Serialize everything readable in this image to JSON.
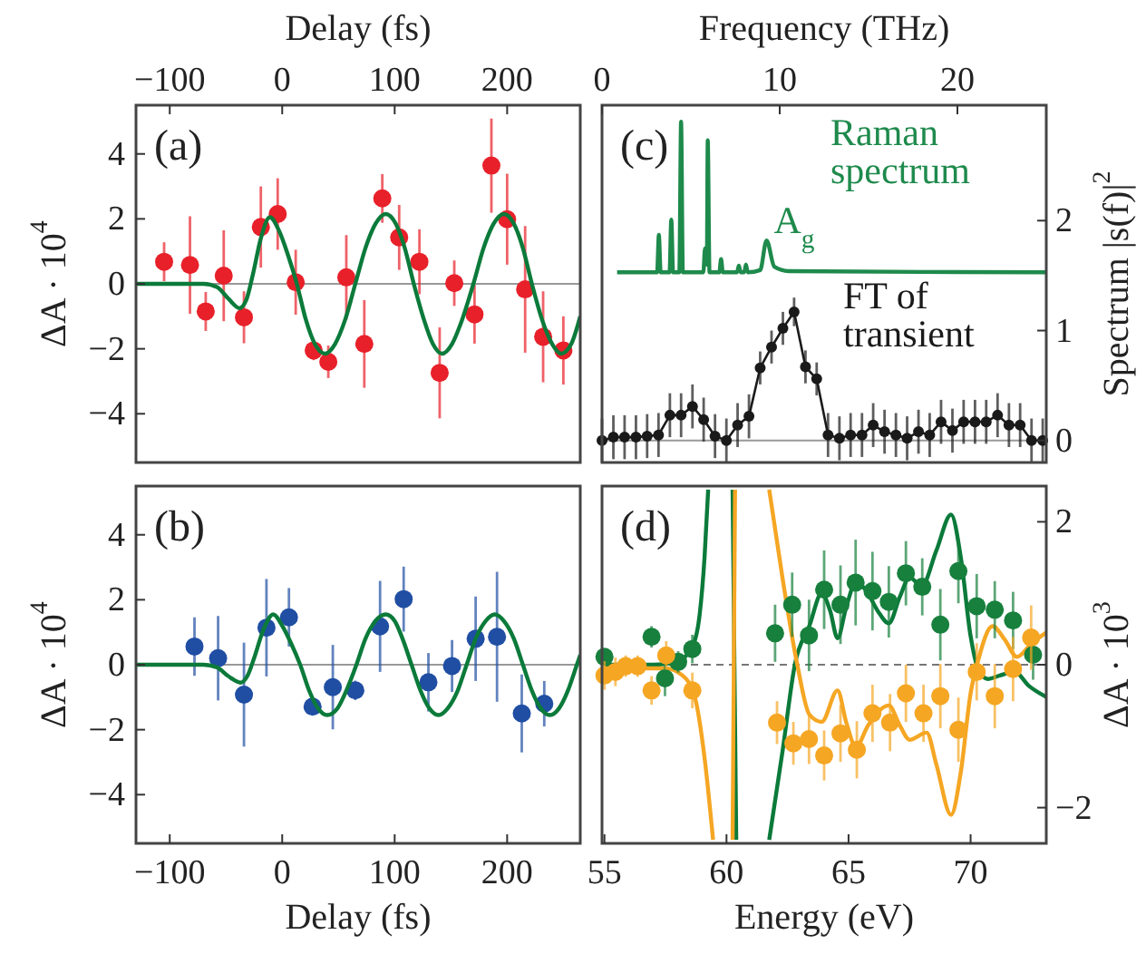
{
  "chart_data": [
    {
      "type": "scatter",
      "title": "(a)",
      "xlabel": "Delay (fs)",
      "ylabel": "ΔA · 10$^{4}$",
      "xlim": [
        -130,
        265
      ],
      "xticks": [
        -100,
        0,
        100,
        200
      ],
      "ylim": [
        -5.5,
        5.5
      ],
      "yticks": [
        -4,
        -2,
        0,
        2,
        4
      ],
      "ref_lines": [
        {
          "axis": "y",
          "value": 0,
          "color": "#999999"
        }
      ],
      "series": [
        {
          "marker": "circle",
          "color": "#e8202a",
          "x": [
            -105,
            -82,
            -68,
            -52,
            -34,
            -19,
            -4,
            12,
            28,
            41,
            57,
            73,
            89,
            104,
            122,
            140,
            153,
            171,
            186,
            200,
            216,
            232,
            250
          ],
          "values": [
            0.68,
            0.58,
            -0.85,
            0.25,
            -1.03,
            1.75,
            2.15,
            0.05,
            -2.05,
            -2.4,
            0.2,
            -1.85,
            2.63,
            1.43,
            0.68,
            -2.74,
            0.02,
            -0.94,
            3.64,
            1.99,
            -0.17,
            -1.63,
            -2.05
          ],
          "errors": [
            0.6,
            1.5,
            0.6,
            1.4,
            0.8,
            1.25,
            1.1,
            1.0,
            0.3,
            0.5,
            1.3,
            1.35,
            0.75,
            1.0,
            1.0,
            1.4,
            0.7,
            0.9,
            1.45,
            1.4,
            1.95,
            1.4,
            1.05
          ]
        },
        {
          "type": "line",
          "color": "#0b7a3a",
          "x": [
            -130,
            -70,
            -58,
            -48,
            -38,
            -32,
            -26,
            -19,
            -11,
            -3,
            5,
            13,
            21,
            29,
            38,
            47,
            56,
            65,
            74,
            83,
            92,
            101,
            109,
            117,
            126,
            134,
            142,
            151,
            160,
            170,
            179,
            188,
            197,
            206,
            214,
            222,
            231,
            240,
            248,
            257,
            265
          ],
          "values": [
            0,
            0,
            -0.1,
            -0.45,
            -0.75,
            -0.5,
            0.3,
            1.4,
            2.05,
            1.65,
            0.9,
            0,
            -1.1,
            -1.85,
            -2.15,
            -1.85,
            -1.1,
            0,
            1.1,
            1.85,
            2.15,
            1.85,
            1.1,
            0,
            -1.1,
            -1.85,
            -2.15,
            -1.85,
            -1.1,
            0,
            1.1,
            1.85,
            2.15,
            1.85,
            1.1,
            0,
            -1.1,
            -1.85,
            -2.15,
            -1.85,
            -1.0
          ]
        }
      ]
    },
    {
      "type": "scatter",
      "title": "(b)",
      "xlabel": "Delay (fs)",
      "ylabel": "ΔA · 10$^{4}$",
      "xlim": [
        -130,
        265
      ],
      "xticks": [
        -100,
        0,
        100,
        200
      ],
      "ylim": [
        -5.5,
        5.5
      ],
      "yticks": [
        -4,
        -2,
        0,
        2,
        4
      ],
      "ref_lines": [
        {
          "axis": "y",
          "value": 0,
          "color": "#999999"
        }
      ],
      "series": [
        {
          "marker": "circle",
          "color": "#1f4ea3",
          "x": [
            -78,
            -57,
            -34,
            -14,
            6,
            27,
            45,
            65,
            87,
            108,
            130,
            151,
            172,
            191,
            213,
            233
          ],
          "values": [
            0.56,
            0.2,
            -0.92,
            1.14,
            1.46,
            -1.29,
            -0.69,
            -0.79,
            1.18,
            2.02,
            -0.54,
            -0.04,
            0.8,
            0.86,
            -1.5,
            -1.2
          ],
          "errors": [
            0.9,
            1.3,
            1.6,
            1.5,
            0.9,
            0.2,
            1.3,
            0.3,
            1.4,
            1.0,
            0.9,
            0.8,
            1.3,
            2.0,
            1.2,
            0.7
          ]
        },
        {
          "type": "line",
          "color": "#0b7a3a",
          "x": [
            -130,
            -70,
            -58,
            -48,
            -37,
            -31,
            -25,
            -17,
            -8,
            0,
            8,
            16,
            24,
            32,
            40,
            49,
            57,
            66,
            74,
            83,
            92,
            100,
            107,
            115,
            123,
            131,
            139,
            147,
            156,
            164,
            172,
            181,
            189,
            197,
            206,
            214,
            222,
            230,
            238,
            246,
            254,
            262,
            265
          ],
          "values": [
            0,
            0,
            -0.08,
            -0.35,
            -0.55,
            -0.35,
            0.2,
            1.05,
            1.55,
            1.2,
            0.65,
            0,
            -0.8,
            -1.35,
            -1.55,
            -1.35,
            -0.8,
            0,
            0.8,
            1.35,
            1.55,
            1.35,
            0.8,
            0,
            -0.8,
            -1.35,
            -1.55,
            -1.35,
            -0.8,
            0,
            0.8,
            1.35,
            1.55,
            1.35,
            0.8,
            0,
            -0.8,
            -1.35,
            -1.55,
            -1.35,
            -0.8,
            0,
            0.3
          ]
        }
      ]
    },
    {
      "type": "line",
      "title": "(c)",
      "xlabel": "Frequency (THz)",
      "ylabel": "Spectrum |s(f)|$^{2}$",
      "xlim": [
        0,
        25
      ],
      "xticks": [
        0,
        10,
        20
      ],
      "ylim": [
        -0.2,
        3.05
      ],
      "yticks": [
        0,
        1,
        2
      ],
      "ref_lines": [
        {
          "axis": "y",
          "value": 0,
          "color": "#999999"
        }
      ],
      "annotations": [
        {
          "text": "A$_{g}$",
          "x": 9.26,
          "y": 1.82
        }
      ],
      "series": [
        {
          "name": "Raman spectrum",
          "color": "#1e8a4c",
          "x": [
            0.85,
            3.1,
            3.2,
            3.3,
            3.8,
            3.9,
            4.0,
            4.35,
            4.45,
            4.55,
            5.7,
            5.8,
            5.9,
            5.95,
            6.05,
            6.6,
            6.7,
            6.8,
            7.6,
            7.7,
            7.8,
            8.0,
            8.1,
            8.2,
            8.9,
            9.26,
            9.7,
            10.5,
            25
          ],
          "values": [
            1.53,
            1.53,
            1.87,
            1.53,
            1.53,
            2.01,
            1.53,
            1.53,
            2.9,
            1.53,
            1.53,
            1.75,
            1.6,
            2.73,
            1.53,
            1.53,
            1.65,
            1.53,
            1.53,
            1.59,
            1.53,
            1.53,
            1.6,
            1.53,
            1.55,
            1.82,
            1.58,
            1.54,
            1.53
          ]
        },
        {
          "name": "FT of transient",
          "marker": "circle",
          "color": "#1a1a1a",
          "x": [
            0,
            0.64,
            1.27,
            1.91,
            2.54,
            3.18,
            3.82,
            4.45,
            5.09,
            5.72,
            6.36,
            7.0,
            7.63,
            8.27,
            8.9,
            9.54,
            10.18,
            10.81,
            11.45,
            12.08,
            12.72,
            13.36,
            13.99,
            14.63,
            15.26,
            15.9,
            16.54,
            17.17,
            17.81,
            18.44,
            19.08,
            19.72,
            20.35,
            20.99,
            21.62,
            22.26,
            22.9,
            23.53,
            24.17,
            24.8
          ],
          "values": [
            0,
            0.03,
            0.03,
            0.03,
            0.04,
            0.05,
            0.23,
            0.23,
            0.31,
            0.19,
            0.04,
            0,
            0.14,
            0.22,
            0.66,
            0.85,
            1.02,
            1.17,
            0.67,
            0.56,
            0.05,
            0.02,
            0.05,
            0.05,
            0.14,
            0.08,
            0.05,
            0.02,
            0.08,
            0.05,
            0.17,
            0.09,
            0.17,
            0.17,
            0.17,
            0.23,
            0.14,
            0.14,
            0,
            0
          ],
          "errors": [
            0.2,
            0.2,
            0.2,
            0.2,
            0.2,
            0.2,
            0.2,
            0.2,
            0.2,
            0.2,
            0.2,
            0.2,
            0.2,
            0.2,
            0.15,
            0.15,
            0.15,
            0.13,
            0.15,
            0.15,
            0.2,
            0.2,
            0.2,
            0.2,
            0.2,
            0.2,
            0.2,
            0.2,
            0.2,
            0.2,
            0.2,
            0.2,
            0.2,
            0.2,
            0.2,
            0.2,
            0.2,
            0.2,
            0.2,
            0.2
          ]
        }
      ]
    },
    {
      "type": "scatter",
      "title": "(d)",
      "xlabel": "Energy (eV)",
      "ylabel": "ΔA · 10$^{3}$",
      "xlim": [
        54.9,
        73.1
      ],
      "xticks": [
        55,
        60,
        65,
        70
      ],
      "ylim": [
        -2.5,
        2.5
      ],
      "yticks": [
        -2,
        0,
        2
      ],
      "ref_lines": [
        {
          "axis": "y",
          "value": 0,
          "color": "#777777",
          "line_style": "dashed"
        }
      ],
      "series": [
        {
          "type": "line",
          "color": "#0b7a3a",
          "x": [
            55,
            57,
            58,
            58.6,
            58.9,
            59.1,
            59.25,
            59.8,
            60.25,
            60.4,
            61,
            61.75,
            62.3,
            62.8,
            63.4,
            63.9,
            64.25,
            64.55,
            64.9,
            65.3,
            65.7,
            66.2,
            66.65,
            67.1,
            67.5,
            68.0,
            68.6,
            69.2,
            69.6,
            70.0,
            70.3,
            70.7,
            71.2,
            71.8,
            72.4,
            73.1
          ],
          "values": [
            0,
            0,
            0.05,
            0.25,
            0.7,
            1.5,
            2.45,
            null,
            2.45,
            -2.45,
            null,
            -2.45,
            -1.2,
            0,
            0.55,
            1.0,
            0.75,
            0.37,
            0.8,
            1.15,
            1.05,
            0.75,
            0.58,
            0.95,
            1.22,
            1.1,
            1.6,
            2.1,
            1.5,
            0.4,
            -0.05,
            -0.2,
            -0.15,
            -0.1,
            -0.3,
            -0.45
          ]
        },
        {
          "type": "line",
          "color": "#f5a623",
          "x": [
            55,
            57.5,
            58.2,
            58.7,
            59.1,
            59.45,
            59.9,
            60.25,
            60.35,
            61,
            61.75,
            62.3,
            62.9,
            63.4,
            63.9,
            64.55,
            64.9,
            65.3,
            65.8,
            66.65,
            67.1,
            67.5,
            68.2,
            68.6,
            69.2,
            69.6,
            70.0,
            70.3,
            70.9,
            71.4,
            71.9,
            72.5,
            73.1
          ],
          "values": [
            -0.05,
            -0.05,
            -0.15,
            -0.45,
            -1.3,
            -2.45,
            null,
            -2.45,
            2.45,
            null,
            2.45,
            1.2,
            0,
            -0.7,
            -0.8,
            -0.36,
            -0.8,
            -1.15,
            -0.85,
            -0.57,
            -0.85,
            -1.05,
            -0.95,
            -1.4,
            -2.1,
            -1.5,
            -0.4,
            0.05,
            0.54,
            0.35,
            0.11,
            0.3,
            0.45
          ]
        },
        {
          "marker": "circle",
          "color": "#17803d",
          "x": [
            55.0,
            56.93,
            57.48,
            58.02,
            58.6,
            61.99,
            62.69,
            63.38,
            64.0,
            64.67,
            65.29,
            65.98,
            66.65,
            67.35,
            68.02,
            68.76,
            69.5,
            70.25,
            70.99,
            71.74,
            72.56
          ],
          "values": [
            0.11,
            0.39,
            -0.19,
            0.04,
            0.22,
            0.44,
            0.84,
            0.41,
            1.05,
            0.84,
            1.15,
            1.03,
            0.88,
            1.28,
            1.09,
            0.56,
            1.31,
            0.82,
            0.77,
            0.62,
            0.14
          ],
          "errors": [
            0.1,
            0.15,
            0.25,
            0.15,
            0.2,
            0.4,
            0.45,
            0.5,
            0.55,
            0.55,
            0.6,
            0.55,
            0.5,
            0.45,
            0.4,
            0.5,
            0.45,
            0.45,
            0.4,
            0.4,
            0.35
          ]
        },
        {
          "marker": "circle",
          "color": "#f5a623",
          "x": [
            55.0,
            55.45,
            55.87,
            56.36,
            56.93,
            57.53,
            58.6,
            62.07,
            62.74,
            63.38,
            64.0,
            64.67,
            65.34,
            65.98,
            66.7,
            67.35,
            68.07,
            68.76,
            69.5,
            70.25,
            70.99,
            71.74,
            72.48
          ],
          "values": [
            -0.15,
            -0.1,
            -0.02,
            -0.02,
            -0.36,
            0.13,
            -0.36,
            -0.81,
            -1.1,
            -1.04,
            -1.27,
            -0.96,
            -1.19,
            -0.68,
            -0.81,
            -0.4,
            -0.68,
            -0.44,
            -0.91,
            -0.1,
            -0.44,
            -0.06,
            0.38
          ],
          "errors": [
            0.2,
            0.2,
            0.15,
            0.15,
            0.2,
            0.2,
            0.25,
            0.3,
            0.3,
            0.35,
            0.35,
            0.4,
            0.4,
            0.4,
            0.4,
            0.4,
            0.4,
            0.45,
            0.45,
            0.4,
            0.45,
            0.45,
            0.45
          ]
        }
      ]
    }
  ]
}
